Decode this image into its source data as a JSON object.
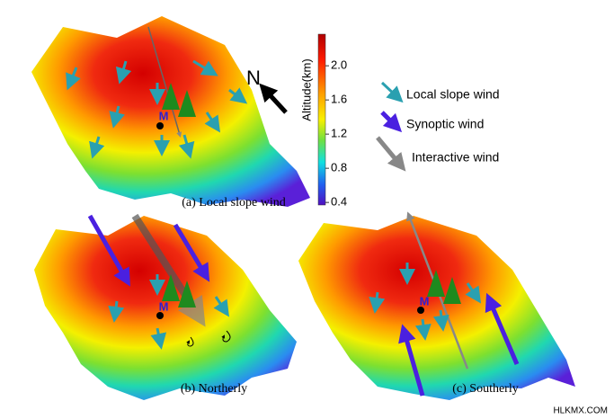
{
  "colorbar": {
    "title": "Altitude(km)",
    "range": [
      0.37,
      2.37
    ],
    "ticks": [
      {
        "value": 0.4,
        "label": "0.4"
      },
      {
        "value": 0.8,
        "label": "0.8"
      },
      {
        "value": 1.2,
        "label": "1.2"
      },
      {
        "value": 1.6,
        "label": "1.6"
      },
      {
        "value": 2,
        "label": "2.0"
      }
    ]
  },
  "north": "N",
  "legend": [
    "Local slope wind",
    "Synoptic wind",
    "Interactive wind"
  ],
  "panels": [
    {
      "label": "(a) Local slope wind",
      "marker": "M"
    },
    {
      "label": "(b) Northerly",
      "marker": "M"
    },
    {
      "label": "(c) Southerly",
      "marker": "M"
    }
  ],
  "watermark": "HLKMX.COM"
}
